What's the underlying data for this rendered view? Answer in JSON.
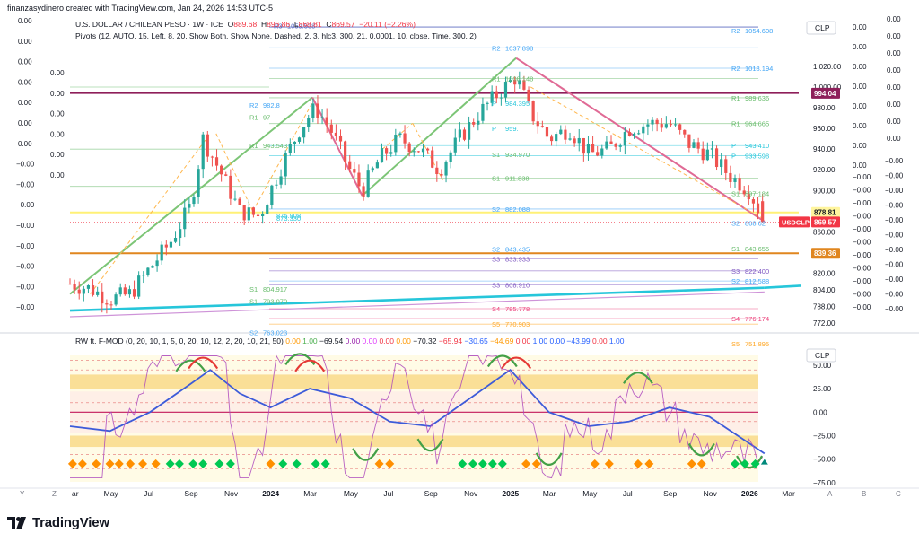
{
  "header": {
    "credit": "finanzasydinero created with TradingView.com, Jan 24, 2026 14:53 UTC-5"
  },
  "footer": {
    "brand": "TradingView"
  },
  "main_pane": {
    "title": "U.S. DOLLAR / CHILEAN PESO · 1W · ICE",
    "ohlc": {
      "o_label": "O",
      "o": "889.68",
      "h_label": "H",
      "h": "896.86",
      "l_label": "L",
      "l": "868.81",
      "c_label": "C",
      "c": "869.57",
      "change": "−20.11 (−2.26%)"
    },
    "pivots_legend": "Pivots (12, AUTO, 15, Left, 8, 20, Show Both, Show None, Dashed, 2, 3, hlc3, 300, 21, 0.0001, 10, close, Time, 300, 2)",
    "currency": "CLP",
    "symbol_label": "USDCLP",
    "price_scale": [
      "1,020.00",
      "1,000.00",
      "980.00",
      "960.00",
      "940.00",
      "920.00",
      "900.00",
      "880.00",
      "860.00",
      "820.00",
      "804.00",
      "788.00",
      "772.00"
    ],
    "price_tags": [
      {
        "value": "994.04",
        "color": "#8e1f5a"
      },
      {
        "value": "878.81",
        "color": "#fff59d"
      },
      {
        "value": "869.57",
        "color": "#f23645"
      },
      {
        "value": "839.36",
        "color": "#e0861f"
      }
    ],
    "left_zero_labels": [
      "0.00",
      "0.00",
      "0.00",
      "0.00",
      "0.00",
      "0.00",
      "0.00",
      "−0.00",
      "−0.00",
      "−0.00",
      "−0.00",
      "−0.00",
      "−0.00",
      "−0.00",
      "−0.00"
    ],
    "far_right_labels_top": [
      "0.00",
      "0.00",
      "0.00",
      "0.00",
      "0.00",
      "0.00",
      "0.00",
      "0.00"
    ],
    "far_right_labels_bottom": [
      "−0.00",
      "−0.00",
      "−0.00",
      "−0.00",
      "−0.00",
      "−0.00",
      "−0.00",
      "−0.00",
      "−0.00",
      "−0.00",
      "−0.00"
    ],
    "pivot_levels": [
      {
        "name": "R3",
        "value": "1059.538",
        "color": "#5c6bc0"
      },
      {
        "name": "R2",
        "value": "1037.898",
        "color": "#42a5f5"
      },
      {
        "name": "R1",
        "value": "1008.148",
        "color": "#66bb6a"
      },
      {
        "name": "R2",
        "value": "1054.608",
        "color": "#42a5f5"
      },
      {
        "name": "R2",
        "value": "1018.194",
        "color": "#42a5f5"
      },
      {
        "name": "R1",
        "value": "989.636",
        "color": "#66bb6a"
      },
      {
        "name": "R1",
        "value": "964.665",
        "color": "#66bb6a"
      },
      {
        "name": "P",
        "value": "943.410",
        "color": "#26c6da"
      },
      {
        "name": "P",
        "value": "933.598",
        "color": "#26c6da"
      },
      {
        "name": "S1",
        "value": "897.184",
        "color": "#66bb6a"
      },
      {
        "name": "S2",
        "value": "868.62",
        "color": "#42a5f5"
      },
      {
        "name": "S1",
        "value": "843.655",
        "color": "#66bb6a"
      },
      {
        "name": "S3",
        "value": "822.400",
        "color": "#7e57c2"
      },
      {
        "name": "S2",
        "value": "812.588",
        "color": "#42a5f5"
      },
      {
        "name": "S4",
        "value": "776.174",
        "color": "#ec407a"
      },
      {
        "name": "S5",
        "value": "751.895",
        "color": "#ffa726"
      },
      {
        "name": "R2",
        "value": "982.8",
        "color": "#42a5f5"
      },
      {
        "name": "R1",
        "value": "97",
        "color": "#66bb6a"
      },
      {
        "name": "R1",
        "value": "943.543",
        "color": "#66bb6a"
      },
      {
        "name": "P",
        "value": "984.395",
        "color": "#26c6da"
      },
      {
        "name": "P",
        "value": "959.",
        "color": "#26c6da"
      },
      {
        "name": "S1",
        "value": "934.970",
        "color": "#66bb6a"
      },
      {
        "name": "S1",
        "value": "911.838",
        "color": "#66bb6a"
      },
      {
        "name": "S2",
        "value": "882.088",
        "color": "#42a5f5"
      },
      {
        "name": "",
        "value": "875.908",
        "color": "#26c6da"
      },
      {
        "name": "",
        "value": "873.330",
        "color": "#26c6da"
      },
      {
        "name": "S2",
        "value": "843.435",
        "color": "#42a5f5"
      },
      {
        "name": "S3",
        "value": "833.933",
        "color": "#7e57c2"
      },
      {
        "name": "S3",
        "value": "808.910",
        "color": "#7e57c2"
      },
      {
        "name": "S1",
        "value": "804.917",
        "color": "#66bb6a"
      },
      {
        "name": "S1",
        "value": "793.070",
        "color": "#66bb6a"
      },
      {
        "name": "S4",
        "value": "785.778",
        "color": "#ec407a"
      },
      {
        "name": "S5",
        "value": "770.903",
        "color": "#ffa726"
      },
      {
        "name": "S2",
        "value": "763.023",
        "color": "#42a5f5"
      }
    ]
  },
  "indicator_pane": {
    "legend_name": "RW ft. F-MOD (0, 20, 10, 1, 5, 0, 20, 10, 12, 2, 20, 10, 21, 50)",
    "legend_values": [
      {
        "v": "0.00",
        "color": "#ff9800"
      },
      {
        "v": "1.00",
        "color": "#4caf50"
      },
      {
        "v": "−69.54",
        "color": "#131722"
      },
      {
        "v": "0.00",
        "color": "#9c27b0"
      },
      {
        "v": "0.00",
        "color": "#e040fb"
      },
      {
        "v": "0.00",
        "color": "#f23645"
      },
      {
        "v": "0.00",
        "color": "#ff9800"
      },
      {
        "v": "−70.32",
        "color": "#131722"
      },
      {
        "v": "−65.94",
        "color": "#f23645"
      },
      {
        "v": "−30.65",
        "color": "#2962ff"
      },
      {
        "v": "−44.69",
        "color": "#ff9800"
      },
      {
        "v": "0.00",
        "color": "#f23645"
      },
      {
        "v": "1.00",
        "color": "#2962ff"
      },
      {
        "v": "0.00",
        "color": "#2962ff"
      },
      {
        "v": "−43.99",
        "color": "#2962ff"
      },
      {
        "v": "0.00",
        "color": "#f23645"
      },
      {
        "v": "1.00",
        "color": "#2962ff"
      }
    ],
    "currency": "CLP",
    "scale": [
      "50.00",
      "25.00",
      "0.00",
      "−25.00",
      "−50.00",
      "−75.00"
    ]
  },
  "time_axis": {
    "labels": [
      "ar",
      "May",
      "Jul",
      "Sep",
      "Nov",
      "2024",
      "Mar",
      "May",
      "Jul",
      "Sep",
      "Nov",
      "2025",
      "Mar",
      "May",
      "Jul",
      "Sep",
      "Nov",
      "2026",
      "Mar"
    ],
    "bold": [
      "2024",
      "2025",
      "2026"
    ],
    "edge_left": [
      "Y",
      "Z"
    ],
    "edge_right": [
      "A",
      "B",
      "C"
    ]
  },
  "colors": {
    "up": "#26a69a",
    "down": "#ef5350",
    "uptrend": "#7cc576",
    "downtrend": "#e06a95",
    "support": "#26c6da",
    "resistance": "#8e1f5a",
    "osc_blue": "#3d5bd9"
  },
  "chart_data": [
    {
      "type": "candlestick",
      "title": "U.S. DOLLAR / CHILEAN PESO · 1W · ICE",
      "series_name": "USDCLP",
      "x_range": [
        "2023-03",
        "2026-03"
      ],
      "ylim": [
        765,
        1065
      ],
      "y_scale": "linear",
      "grid": false,
      "last_bar": {
        "o": 889.68,
        "h": 896.86,
        "l": 868.81,
        "c": 869.57
      },
      "close_path": [
        [
          "2023-03-01",
          810
        ],
        [
          "2023-04-01",
          805
        ],
        [
          "2023-05-01",
          795
        ],
        [
          "2023-06-01",
          800
        ],
        [
          "2023-07-01",
          825
        ],
        [
          "2023-08-01",
          850
        ],
        [
          "2023-09-01",
          885
        ],
        [
          "2023-09-20",
          950
        ],
        [
          "2023-10-15",
          920
        ],
        [
          "2023-11-15",
          880
        ],
        [
          "2023-12-15",
          875
        ],
        [
          "2024-01-15",
          920
        ],
        [
          "2024-02-15",
          960
        ],
        [
          "2024-03-10",
          980
        ],
        [
          "2024-04-01",
          960
        ],
        [
          "2024-05-01",
          920
        ],
        [
          "2024-05-20",
          900
        ],
        [
          "2024-06-15",
          930
        ],
        [
          "2024-07-15",
          950
        ],
        [
          "2024-08-15",
          940
        ],
        [
          "2024-09-15",
          920
        ],
        [
          "2024-10-15",
          950
        ],
        [
          "2024-11-15",
          975
        ],
        [
          "2024-12-15",
          995
        ],
        [
          "2025-01-10",
          1010
        ],
        [
          "2025-02-01",
          975
        ],
        [
          "2025-03-01",
          950
        ],
        [
          "2025-04-01",
          960
        ],
        [
          "2025-05-01",
          935
        ],
        [
          "2025-06-01",
          940
        ],
        [
          "2025-07-01",
          960
        ],
        [
          "2025-08-01",
          965
        ],
        [
          "2025-09-01",
          965
        ],
        [
          "2025-10-01",
          945
        ],
        [
          "2025-11-01",
          935
        ],
        [
          "2025-12-01",
          915
        ],
        [
          "2026-01-01",
          900
        ],
        [
          "2026-01-24",
          869.57
        ]
      ],
      "trendlines": [
        {
          "name": "uptrend-2023",
          "from": [
            "2023-03-01",
            800
          ],
          "to": [
            "2024-03-05",
            990
          ]
        },
        {
          "name": "downtrend-2024",
          "from": [
            "2024-03-05",
            990
          ],
          "to": [
            "2024-05-20",
            895
          ]
        },
        {
          "name": "uptrend-2024",
          "from": [
            "2024-05-20",
            895
          ],
          "to": [
            "2025-01-10",
            1028
          ]
        },
        {
          "name": "downtrend-2025",
          "from": [
            "2025-01-10",
            1028
          ],
          "to": [
            "2026-01-24",
            870
          ]
        },
        {
          "name": "long-support",
          "from": [
            "2023-03-01",
            784
          ],
          "to": [
            "2026-01-24",
            806
          ]
        }
      ],
      "horizontal_levels": [
        994.04,
        878.81,
        839.36
      ]
    },
    {
      "type": "line",
      "title": "RW ft. F-MOD (0, 20, 10, 1, 5, 0, 20, 10, 12, 2, 20, 10, 21, 50)",
      "ylim": [
        -78,
        70
      ],
      "bands": [
        [
          25,
          40
        ],
        [
          -37,
          -25
        ]
      ],
      "series": [
        {
          "name": "",
          "color": "#3d5bd9",
          "points": [
            [
              "2023-03-01",
              -15
            ],
            [
              "2023-05-01",
              -20
            ],
            [
              "2023-07-01",
              0
            ],
            [
              "2023-09-01",
              30
            ],
            [
              "2023-10-01",
              45
            ],
            [
              "2023-11-15",
              20
            ],
            [
              "2024-01-01",
              5
            ],
            [
              "2024-03-01",
              25
            ],
            [
              "2024-05-01",
              15
            ],
            [
              "2024-07-01",
              -10
            ],
            [
              "2024-09-01",
              -15
            ],
            [
              "2024-11-01",
              15
            ],
            [
              "2025-01-01",
              45
            ],
            [
              "2025-03-01",
              0
            ],
            [
              "2025-05-01",
              -15
            ],
            [
              "2025-07-01",
              -10
            ],
            [
              "2025-09-01",
              5
            ],
            [
              "2025-11-01",
              -5
            ],
            [
              "2026-01-24",
              -44
            ]
          ]
        }
      ]
    }
  ]
}
